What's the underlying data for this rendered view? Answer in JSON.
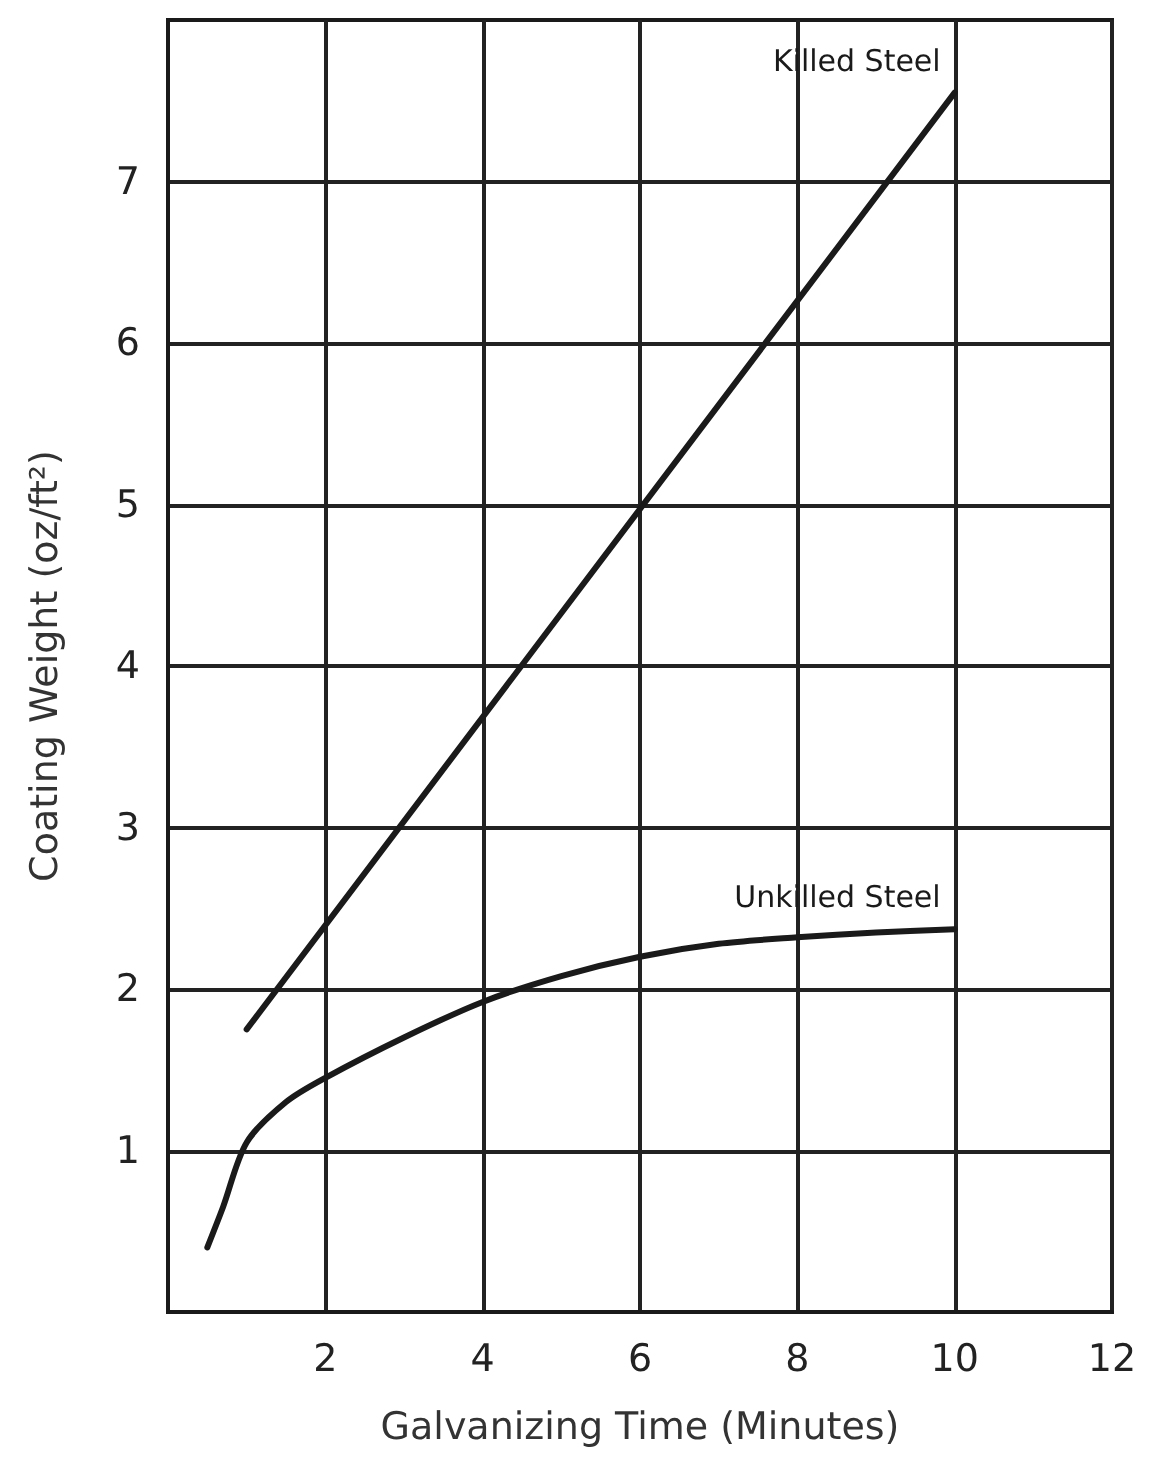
{
  "chart_data": {
    "type": "line",
    "xlabel": "Galvanizing Time (Minutes)",
    "ylabel": "Coating Weight (oz/ft²)",
    "xlim": [
      0,
      12
    ],
    "xticks": [
      2,
      4,
      6,
      8,
      10,
      12
    ],
    "ylim": [
      0,
      8
    ],
    "yticks": [
      1,
      2,
      3,
      4,
      5,
      6,
      7
    ],
    "grid": true,
    "legend": false,
    "marker": "none",
    "line_style": "solid",
    "series": [
      {
        "name": "Killed Steel",
        "color": "#1a1a1a",
        "x": [
          1,
          10
        ],
        "values": [
          1.75,
          7.55
        ]
      },
      {
        "name": "Unkilled Steel",
        "color": "#1a1a1a",
        "x": [
          0.5,
          0.7,
          1,
          1.5,
          2,
          3,
          4,
          5,
          6,
          7,
          8,
          9,
          10
        ],
        "values": [
          0.4,
          0.65,
          1.05,
          1.3,
          1.45,
          1.7,
          1.92,
          2.08,
          2.2,
          2.28,
          2.32,
          2.35,
          2.37
        ]
      }
    ]
  }
}
